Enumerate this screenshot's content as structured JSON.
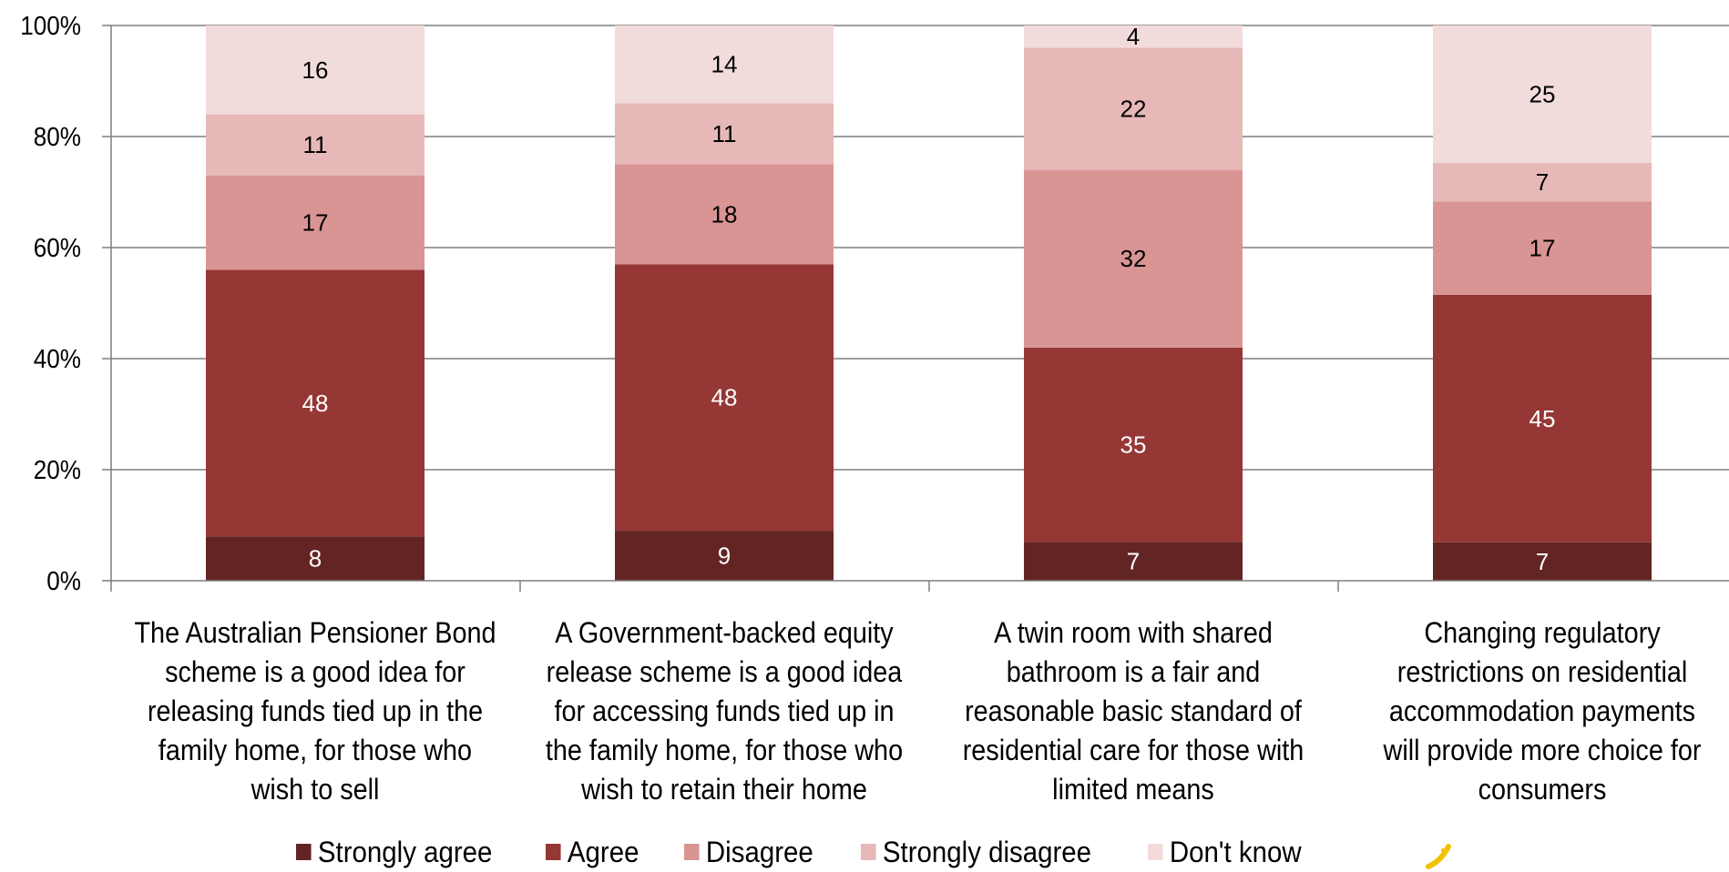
{
  "chart_data": {
    "type": "bar",
    "stacked": true,
    "normalized": true,
    "categories": [
      "The Australian Pensioner Bond scheme is a good idea for releasing funds tied up in the family home, for those who wish to sell",
      "A Government-backed equity release scheme is a good idea for accessing funds tied up in the family home, for those who wish to retain their home",
      "A twin room with shared bathroom is a fair and reasonable basic standard of residential care for those with limited means",
      "Changing regulatory restrictions on residential accommodation payments will provide more choice for consumers"
    ],
    "series": [
      {
        "name": "Strongly agree",
        "color": "#632523",
        "label_color": "#ffffff",
        "values": [
          8,
          9,
          7,
          7
        ]
      },
      {
        "name": "Agree",
        "color": "#953735",
        "label_color": "#ffffff",
        "values": [
          48,
          48,
          35,
          45
        ]
      },
      {
        "name": "Disagree",
        "color": "#d99594",
        "label_color": "#000000",
        "values": [
          17,
          18,
          32,
          17
        ]
      },
      {
        "name": "Strongly disagree",
        "color": "#e6b9b8",
        "label_color": "#000000",
        "values": [
          11,
          11,
          22,
          7
        ]
      },
      {
        "name": "Don't know",
        "color": "#f2dcdb",
        "label_color": "#000000",
        "values": [
          16,
          14,
          4,
          25
        ]
      }
    ],
    "y_ticks": [
      "0%",
      "20%",
      "40%",
      "60%",
      "80%",
      "100%"
    ],
    "ylim": [
      0,
      100
    ],
    "grid": true,
    "legend_position": "bottom"
  },
  "colors": {
    "gridline": "#7f7f7f",
    "logo": "#f2c200"
  },
  "logo": {
    "icon": "yellow-tick-logo"
  }
}
